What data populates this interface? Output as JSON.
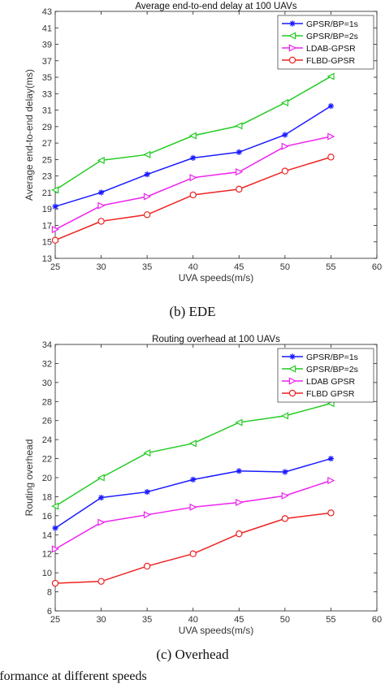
{
  "captions": {
    "b": "(b) EDE",
    "c": "(c) Overhead",
    "footer": "Performance at different speeds"
  },
  "chart_data": [
    {
      "type": "line",
      "title": "Average end-to-end delay at 100 UAVs",
      "xlabel": "UVA speeds(m/s)",
      "ylabel": "Average end-to-end delay(ms)",
      "xlim": [
        25,
        60
      ],
      "ylim": [
        13,
        43
      ],
      "xticks": [
        25,
        30,
        35,
        40,
        45,
        50,
        55,
        60
      ],
      "yticks": [
        13,
        15,
        17,
        19,
        21,
        23,
        25,
        27,
        29,
        31,
        33,
        35,
        37,
        39,
        41,
        43
      ],
      "legend_position": "top-right",
      "grid": false,
      "x": [
        25,
        30,
        35,
        40,
        45,
        50,
        55
      ],
      "series": [
        {
          "name": "GPSR/BP=1s",
          "values": [
            19.3,
            21.0,
            23.2,
            25.2,
            25.9,
            28.0,
            31.5
          ],
          "color": "#1a1aff",
          "marker": "star"
        },
        {
          "name": "GPSR/BP=2s",
          "values": [
            21.3,
            24.9,
            25.6,
            27.9,
            29.1,
            31.9,
            35.1
          ],
          "color": "#22cc22",
          "marker": "triangle-left"
        },
        {
          "name": "LDAB-GPSR",
          "values": [
            16.5,
            19.4,
            20.5,
            22.8,
            23.5,
            26.6,
            27.8
          ],
          "color": "#ee22ee",
          "marker": "triangle-right"
        },
        {
          "name": "FLBD-GPSR",
          "values": [
            15.2,
            17.5,
            18.3,
            20.7,
            21.4,
            23.6,
            25.3
          ],
          "color": "#ee2222",
          "marker": "circle"
        }
      ]
    },
    {
      "type": "line",
      "title": "Routing overhead at 100 UAVs",
      "xlabel": "UVA speeds(m/s)",
      "ylabel": "Routing overhead",
      "xlim": [
        25,
        60
      ],
      "ylim": [
        6,
        34
      ],
      "xticks": [
        25,
        30,
        35,
        40,
        45,
        50,
        55,
        60
      ],
      "yticks": [
        6,
        8,
        10,
        12,
        14,
        16,
        18,
        20,
        22,
        24,
        26,
        28,
        30,
        32,
        34
      ],
      "legend_position": "top-right",
      "grid": false,
      "x": [
        25,
        30,
        35,
        40,
        45,
        50,
        55
      ],
      "series": [
        {
          "name": "GPSR/BP=1s",
          "values": [
            14.7,
            17.9,
            18.5,
            19.8,
            20.7,
            20.6,
            22.0
          ],
          "color": "#1a1aff",
          "marker": "star"
        },
        {
          "name": "GPSR/BP=2s",
          "values": [
            17.0,
            20.0,
            22.6,
            23.6,
            25.8,
            26.5,
            27.8
          ],
          "color": "#22cc22",
          "marker": "triangle-left"
        },
        {
          "name": "LDAB GPSR",
          "values": [
            12.5,
            15.3,
            16.1,
            16.9,
            17.4,
            18.1,
            19.7
          ],
          "color": "#ee22ee",
          "marker": "triangle-right"
        },
        {
          "name": "FLBD GPSR",
          "values": [
            8.9,
            9.1,
            10.7,
            12.0,
            14.1,
            15.7,
            16.3
          ],
          "color": "#ee2222",
          "marker": "circle"
        }
      ]
    }
  ]
}
